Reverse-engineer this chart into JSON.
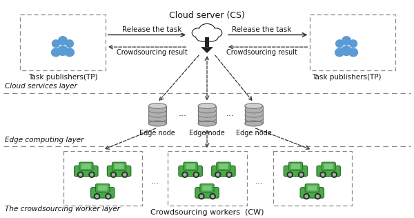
{
  "title": "Cloud server (CS)",
  "layer1_label": "Cloud services layer",
  "layer2_label": "Edge computing layer",
  "layer3_label": "The crowdsourcing worker layer",
  "tp_label": "Task publishers(TP)",
  "edge_node_label": "Edge node",
  "cw_label": "Crowdsourcing workers  (CW)",
  "release_task": "Release the task",
  "crowdsourcing_result": "Crowdsourcing result",
  "bg_color": "#ffffff",
  "people_color": "#5b9bd5",
  "car_body_color": "#4aaa4a",
  "car_dark_color": "#2d7a2d",
  "car_outline_color": "#2d6e2d",
  "node_color": "#b0b0b0",
  "node_edge_color": "#777777",
  "arrow_color": "#333333",
  "label_color": "#111111",
  "dash_color": "#888888"
}
